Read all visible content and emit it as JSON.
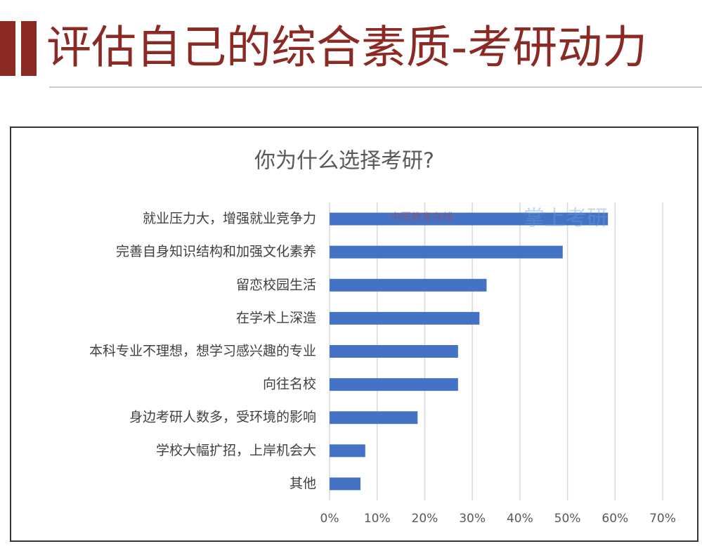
{
  "header": {
    "title": "评估自己的综合素质-考研动力"
  },
  "watermarks": [
    "中国教育在线",
    "掌上考研"
  ],
  "chart_data": {
    "type": "bar",
    "orientation": "horizontal",
    "title": "你为什么选择考研?",
    "categories": [
      "就业压力大，增强就业竞争力",
      "完善自身知识结构和加强文化素养",
      "留恋校园生活",
      "在学术上深造",
      "本科专业不理想，想学习感兴趣的专业",
      "向往名校",
      "身边考研人数多，受环境的影响",
      "学校大幅扩招，上岸机会大",
      "其他"
    ],
    "values": [
      58.5,
      49,
      33,
      31.5,
      27,
      27,
      18.5,
      7.5,
      6.5
    ],
    "color": "#4472c4",
    "xlim": [
      0,
      70
    ],
    "xticks": [
      {
        "value": 0,
        "label": "0%"
      },
      {
        "value": 10,
        "label": "10%"
      },
      {
        "value": 20,
        "label": "20%"
      },
      {
        "value": 30,
        "label": "30%"
      },
      {
        "value": 40,
        "label": "40%"
      },
      {
        "value": 50,
        "label": "50%"
      },
      {
        "value": 60,
        "label": "60%"
      },
      {
        "value": 70,
        "label": "70%"
      }
    ],
    "grid": true
  }
}
